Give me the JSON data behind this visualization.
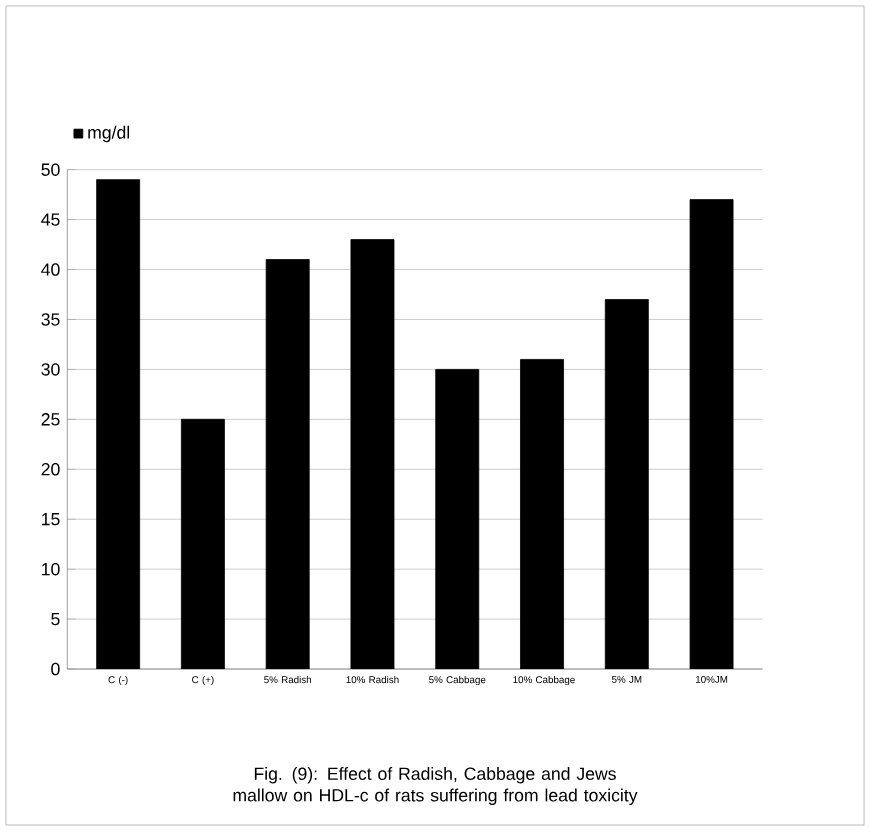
{
  "chart_data": {
    "type": "bar",
    "title": "Fig. (9): Effect of Radish, Cabbage and Jews mallow  on  HDL-c of rats suffering from lead toxicity",
    "categories": [
      "C (-)",
      "C (+)",
      "5% Radish",
      "10% Radish",
      "5% Cabbage",
      "10% Cabbage",
      "5% JM",
      "10%JM"
    ],
    "series": [
      {
        "name": "mg/dl",
        "color": "#000000",
        "values": [
          49,
          25,
          41,
          43,
          30,
          31,
          37,
          47
        ]
      }
    ],
    "ylim": [
      0,
      50
    ],
    "yticks": [
      0,
      5,
      10,
      15,
      20,
      25,
      30,
      35,
      40,
      45,
      50
    ],
    "grid": "y",
    "legend": "top left"
  }
}
